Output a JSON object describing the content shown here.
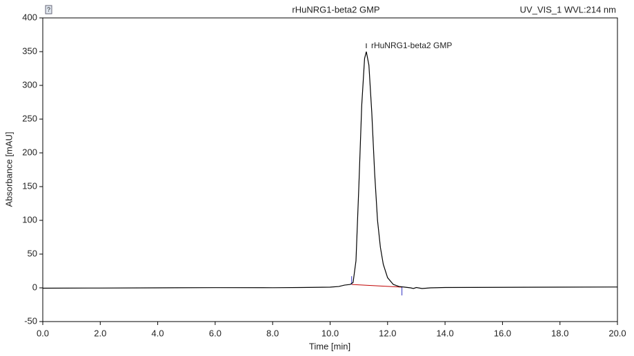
{
  "chart_data": {
    "type": "line",
    "title": "rHuNRG1-beta2 GMP",
    "channel": "UV_VIS_1 WVL:214 nm",
    "x_label": "Time [min]",
    "y_label": "Absorbance [mAU]",
    "peak_label": "rHuNRG1-beta2 GMP",
    "x": [
      0,
      2,
      4,
      6,
      8,
      9,
      10,
      10.3,
      10.5,
      10.7,
      10.8,
      10.9,
      11.0,
      11.1,
      11.2,
      11.26,
      11.35,
      11.45,
      11.55,
      11.65,
      11.75,
      11.85,
      12.0,
      12.2,
      12.4,
      12.6,
      12.8,
      12.9,
      13.0,
      13.2,
      13.5,
      14,
      16,
      18,
      20
    ],
    "values": [
      -0.5,
      -0.3,
      0,
      0.3,
      0.2,
      0.5,
      1,
      2,
      4,
      5,
      8,
      40,
      150,
      270,
      340,
      350,
      330,
      260,
      170,
      100,
      60,
      35,
      15,
      5,
      2,
      1,
      0,
      -1,
      0.5,
      -1,
      0,
      0.5,
      0.8,
      1,
      1.2
    ],
    "color": "#000000",
    "baseline": {
      "x": [
        10.75,
        12.5
      ],
      "values": [
        5,
        1
      ],
      "color": "#c00000"
    },
    "xlim": [
      0,
      20
    ],
    "xticks": [
      {
        "value": 0,
        "label": "0.0"
      },
      {
        "value": 2,
        "label": "2.0"
      },
      {
        "value": 4,
        "label": "4.0"
      },
      {
        "value": 6,
        "label": "6.0"
      },
      {
        "value": 8,
        "label": "8.0"
      },
      {
        "value": 10,
        "label": "10.0"
      },
      {
        "value": 12,
        "label": "12.0"
      },
      {
        "value": 14,
        "label": "14.0"
      },
      {
        "value": 16,
        "label": "16.0"
      },
      {
        "value": 18,
        "label": "18.0"
      },
      {
        "value": 20,
        "label": "20.0"
      }
    ],
    "ylim": [
      -50,
      400
    ],
    "yticks": [
      -50,
      0,
      50,
      100,
      150,
      200,
      250,
      300,
      350,
      400
    ]
  }
}
